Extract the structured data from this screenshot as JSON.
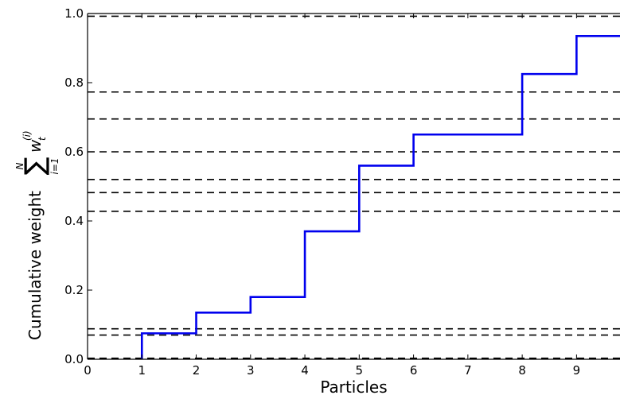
{
  "chart_data": {
    "type": "line",
    "step": true,
    "xlabel": "Particles",
    "ylabel": {
      "prefix": "Cumulative weight",
      "sum_upper": "N",
      "sum_lower": "i=1",
      "term": "w",
      "term_sub": "t",
      "term_sup": "(i)"
    },
    "xlim": [
      0,
      9.8
    ],
    "ylim": [
      0,
      1.0
    ],
    "xticks": [
      0,
      1,
      2,
      3,
      4,
      5,
      6,
      7,
      8,
      9
    ],
    "xtick_labels": [
      "0",
      "1",
      "2",
      "3",
      "4",
      "5",
      "6",
      "7",
      "8",
      "9"
    ],
    "yticks": [
      0,
      0.2,
      0.4,
      0.6,
      0.8,
      1.0
    ],
    "ytick_labels": [
      "0.0",
      "0.2",
      "0.4",
      "0.6",
      "0.8",
      "1.0"
    ],
    "series": [
      {
        "color": "#0000ee",
        "style": "solid",
        "x": [
          1,
          2,
          3,
          4,
          5,
          6,
          8,
          9
        ],
        "y": [
          0.075,
          0.135,
          0.18,
          0.37,
          0.56,
          0.65,
          0.825,
          0.935
        ]
      }
    ],
    "hlines": {
      "color": "#000000",
      "style": "dashed",
      "values": [
        0.003,
        0.07,
        0.088,
        0.428,
        0.482,
        0.52,
        0.6,
        0.695,
        0.773,
        0.992
      ]
    },
    "grid": false,
    "legend": "none"
  }
}
